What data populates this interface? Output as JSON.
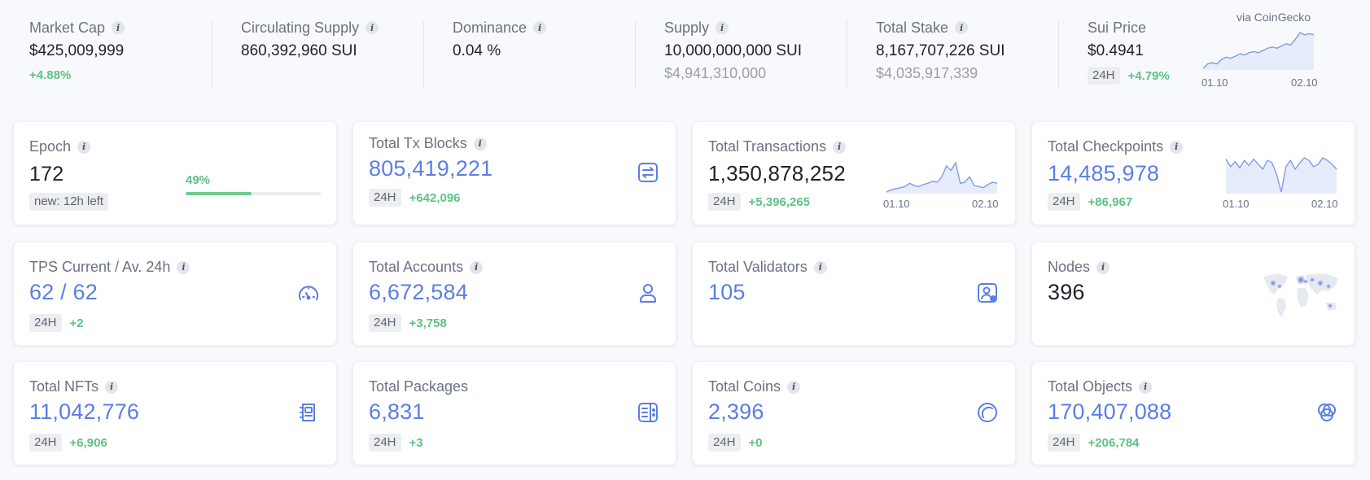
{
  "top_stats": {
    "market_cap": {
      "label": "Market Cap",
      "value": "$425,009,999",
      "change": "+4.88%"
    },
    "circulating_supply": {
      "label": "Circulating Supply",
      "value": "860,392,960",
      "unit": "SUI"
    },
    "dominance": {
      "label": "Dominance",
      "value": "0.04 %"
    },
    "supply": {
      "label": "Supply",
      "value": "10,000,000,000",
      "unit": "SUI",
      "sub": "$4,941,310,000"
    },
    "total_stake": {
      "label": "Total Stake",
      "value": "8,167,707,226",
      "unit": "SUI",
      "sub": "$4,035,917,339"
    },
    "sui_price": {
      "label": "Sui Price",
      "value": "$0.4941",
      "period": "24H",
      "change": "+4.79%",
      "source": "via CoinGecko",
      "x_start": "01.10",
      "x_end": "02.10",
      "series": [
        8,
        12,
        13,
        12,
        16,
        18,
        17,
        19,
        21,
        20,
        22,
        23,
        22,
        24,
        26,
        27,
        26,
        28,
        30,
        29,
        34,
        40,
        38,
        39,
        38
      ]
    }
  },
  "cards": {
    "epoch": {
      "label": "Epoch",
      "value": "172",
      "badge": "new: 12h left",
      "progress_label": "49%",
      "progress": 0.49
    },
    "total_tx_blocks": {
      "label": "Total Tx Blocks",
      "value": "805,419,221",
      "period": "24H",
      "change": "+642,096"
    },
    "total_transactions": {
      "label": "Total Transactions",
      "value": "1,350,878,252",
      "period": "24H",
      "change": "+5,396,265",
      "x_start": "01.10",
      "x_end": "02.10",
      "series": [
        4,
        6,
        7,
        8,
        9,
        12,
        10,
        9,
        11,
        12,
        14,
        13,
        18,
        28,
        24,
        31,
        12,
        13,
        18,
        10,
        9,
        8,
        11,
        13,
        12
      ]
    },
    "total_checkpoints": {
      "label": "Total Checkpoints",
      "value": "14,485,978",
      "period": "24H",
      "change": "+86,967",
      "x_start": "01.10",
      "x_end": "02.10",
      "series": [
        34,
        28,
        32,
        27,
        33,
        29,
        34,
        30,
        26,
        33,
        31,
        22,
        8,
        28,
        33,
        26,
        31,
        35,
        33,
        28,
        30,
        35,
        33,
        30,
        26
      ]
    },
    "tps": {
      "label": "TPS Current / Av. 24h",
      "value": "62 / 62",
      "period": "24H",
      "change": "+2"
    },
    "total_accounts": {
      "label": "Total Accounts",
      "value": "6,672,584",
      "period": "24H",
      "change": "+3,758"
    },
    "total_validators": {
      "label": "Total Validators",
      "value": "105"
    },
    "nodes": {
      "label": "Nodes",
      "value": "396"
    },
    "total_nfts": {
      "label": "Total NFTs",
      "value": "11,042,776",
      "period": "24H",
      "change": "+6,906"
    },
    "total_packages": {
      "label": "Total Packages",
      "value": "6,831",
      "period": "24H",
      "change": "+3"
    },
    "total_coins": {
      "label": "Total Coins",
      "value": "2,396",
      "period": "24H",
      "change": "+0"
    },
    "total_objects": {
      "label": "Total Objects",
      "value": "170,407,088",
      "period": "24H",
      "change": "+206,784"
    }
  },
  "colors": {
    "accent": "#5b7ee5",
    "positive": "#5fc186",
    "muted": "#6b7280"
  },
  "icons": {
    "total_tx_blocks": "swap-icon",
    "tps": "speedometer-icon",
    "total_accounts": "user-icon",
    "total_validators": "validator-badge-icon",
    "nodes": "world-map-icon",
    "total_nfts": "nft-card-icon",
    "total_packages": "package-icon",
    "total_coins": "coin-icon",
    "total_objects": "objects-icon"
  }
}
